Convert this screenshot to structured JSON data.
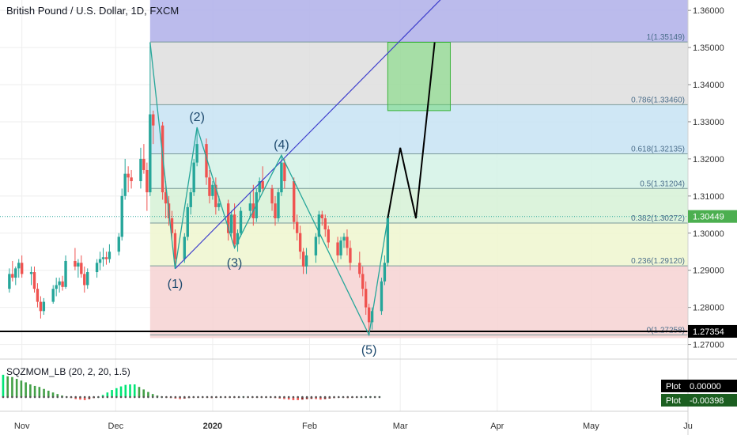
{
  "title": "British Pound / U.S. Dollar, 1D, FXCM",
  "indicator": {
    "name": "SQZMOM_LB (20, 2, 20, 1.5)"
  },
  "colors": {
    "up": "#26a69a",
    "down": "#ef5350",
    "wave_line": "#26a69a",
    "trend_line": "#3d3dcc",
    "projection": "#000000",
    "target_box": "#5bd65b",
    "support": "#000000",
    "price_tag": "#4caf50"
  },
  "chart_data": {
    "type": "candlestick",
    "y_ticks": [
      1.36,
      1.35,
      1.34,
      1.33,
      1.32,
      1.31,
      1.3,
      1.29,
      1.28,
      1.27
    ],
    "y_tick_labels": [
      "1.36000",
      "1.35000",
      "1.34000",
      "1.33000",
      "1.32000",
      "1.31000",
      "1.30000",
      "1.29000",
      "1.28000",
      "1.27000"
    ],
    "ylim": [
      1.2665,
      1.3628
    ],
    "x_labels": [
      {
        "label": "Nov",
        "day": 31
      },
      {
        "label": "Dec",
        "day": 61
      },
      {
        "label": "2020",
        "day": 92
      },
      {
        "label": "Feb",
        "day": 123
      },
      {
        "label": "Mar",
        "day": 152
      },
      {
        "label": "Apr",
        "day": 183
      },
      {
        "label": "May",
        "day": 213
      },
      {
        "label": "Ju",
        "day": 244
      }
    ],
    "xlim": [
      24,
      244
    ],
    "candles": [
      [
        27,
        1.285,
        1.2905,
        1.284,
        1.289
      ],
      [
        28,
        1.289,
        1.2925,
        1.287,
        1.288
      ],
      [
        29,
        1.288,
        1.291,
        1.286,
        1.2905
      ],
      [
        30,
        1.2905,
        1.293,
        1.288,
        1.292
      ],
      [
        31,
        1.292,
        1.294,
        1.288,
        1.289
      ],
      [
        34,
        1.289,
        1.291,
        1.286,
        1.2895
      ],
      [
        35,
        1.2895,
        1.291,
        1.284,
        1.285
      ],
      [
        36,
        1.285,
        1.2865,
        1.28,
        1.2815
      ],
      [
        37,
        1.2815,
        1.283,
        1.277,
        1.279
      ],
      [
        38,
        1.279,
        1.2825,
        1.278,
        1.2815
      ],
      [
        41,
        1.2815,
        1.286,
        1.281,
        1.285
      ],
      [
        42,
        1.285,
        1.288,
        1.283,
        1.286
      ],
      [
        43,
        1.286,
        1.288,
        1.284,
        1.287
      ],
      [
        44,
        1.287,
        1.2885,
        1.2845,
        1.2855
      ],
      [
        45,
        1.2855,
        1.294,
        1.285,
        1.2925
      ],
      [
        48,
        1.2925,
        1.296,
        1.29,
        1.291
      ],
      [
        49,
        1.291,
        1.293,
        1.288,
        1.292
      ],
      [
        50,
        1.292,
        1.294,
        1.288,
        1.289
      ],
      [
        51,
        1.289,
        1.291,
        1.284,
        1.286
      ],
      [
        52,
        1.286,
        1.2905,
        1.285,
        1.2895
      ],
      [
        55,
        1.2895,
        1.293,
        1.288,
        1.292
      ],
      [
        56,
        1.292,
        1.295,
        1.29,
        1.293
      ],
      [
        57,
        1.293,
        1.296,
        1.291,
        1.2935
      ],
      [
        58,
        1.2935,
        1.295,
        1.2915,
        1.293
      ],
      [
        59,
        1.293,
        1.297,
        1.292,
        1.295
      ],
      [
        62,
        1.295,
        1.3,
        1.294,
        1.299
      ],
      [
        63,
        1.299,
        1.312,
        1.298,
        1.31
      ],
      [
        64,
        1.31,
        1.32,
        1.309,
        1.316
      ],
      [
        65,
        1.316,
        1.318,
        1.311,
        1.315
      ],
      [
        66,
        1.315,
        1.317,
        1.312,
        1.314
      ],
      [
        69,
        1.314,
        1.323,
        1.312,
        1.32
      ],
      [
        70,
        1.32,
        1.324,
        1.316,
        1.317
      ],
      [
        71,
        1.317,
        1.319,
        1.306,
        1.311
      ],
      [
        72,
        1.311,
        1.3514,
        1.31,
        1.332
      ],
      [
        73,
        1.332,
        1.333,
        1.324,
        1.329
      ],
      [
        76,
        1.329,
        1.33,
        1.309,
        1.311
      ],
      [
        77,
        1.311,
        1.314,
        1.304,
        1.308
      ],
      [
        78,
        1.308,
        1.31,
        1.302,
        1.304
      ],
      [
        79,
        1.304,
        1.306,
        1.298,
        1.3
      ],
      [
        80,
        1.3,
        1.301,
        1.2904,
        1.293
      ],
      [
        83,
        1.293,
        1.3,
        1.292,
        1.299
      ],
      [
        84,
        1.299,
        1.308,
        1.298,
        1.307
      ],
      [
        85,
        1.307,
        1.312,
        1.305,
        1.311
      ],
      [
        86,
        1.311,
        1.32,
        1.31,
        1.319
      ],
      [
        87,
        1.319,
        1.3285,
        1.318,
        1.324
      ],
      [
        90,
        1.324,
        1.3255,
        1.313,
        1.315
      ],
      [
        91,
        1.315,
        1.317,
        1.308,
        1.31
      ],
      [
        92,
        1.31,
        1.314,
        1.309,
        1.313
      ],
      [
        93,
        1.313,
        1.315,
        1.305,
        1.307
      ],
      [
        94,
        1.307,
        1.31,
        1.306,
        1.308
      ],
      [
        97,
        1.308,
        1.309,
        1.298,
        1.3
      ],
      [
        98,
        1.3,
        1.306,
        1.299,
        1.305
      ],
      [
        99,
        1.305,
        1.308,
        1.296,
        1.297
      ],
      [
        100,
        1.297,
        1.301,
        1.295,
        1.3
      ],
      [
        101,
        1.3,
        1.307,
        1.299,
        1.306
      ],
      [
        104,
        1.306,
        1.311,
        1.304,
        1.308
      ],
      [
        105,
        1.308,
        1.313,
        1.302,
        1.304
      ],
      [
        106,
        1.304,
        1.312,
        1.303,
        1.311
      ],
      [
        107,
        1.311,
        1.315,
        1.309,
        1.314
      ],
      [
        108,
        1.314,
        1.318,
        1.311,
        1.312
      ],
      [
        111,
        1.312,
        1.313,
        1.306,
        1.308
      ],
      [
        112,
        1.308,
        1.31,
        1.302,
        1.304
      ],
      [
        113,
        1.304,
        1.312,
        1.303,
        1.311
      ],
      [
        114,
        1.311,
        1.321,
        1.31,
        1.319
      ],
      [
        115,
        1.319,
        1.32,
        1.312,
        1.314
      ],
      [
        118,
        1.314,
        1.315,
        1.301,
        1.303
      ],
      [
        119,
        1.303,
        1.305,
        1.298,
        1.3
      ],
      [
        120,
        1.3,
        1.302,
        1.293,
        1.295
      ],
      [
        121,
        1.295,
        1.296,
        1.289,
        1.291
      ],
      [
        122,
        1.291,
        1.296,
        1.289,
        1.294
      ],
      [
        125,
        1.294,
        1.3,
        1.292,
        1.299
      ],
      [
        126,
        1.299,
        1.306,
        1.297,
        1.305
      ],
      [
        127,
        1.305,
        1.306,
        1.302,
        1.304
      ],
      [
        128,
        1.304,
        1.305,
        1.299,
        1.301
      ],
      [
        129,
        1.301,
        1.302,
        1.296,
        1.2975
      ],
      [
        132,
        1.2975,
        1.299,
        1.292,
        1.294
      ],
      [
        133,
        1.294,
        1.299,
        1.293,
        1.298
      ],
      [
        134,
        1.298,
        1.3,
        1.296,
        1.299
      ],
      [
        135,
        1.299,
        1.301,
        1.294,
        1.296
      ],
      [
        136,
        1.296,
        1.298,
        1.29,
        1.292
      ],
      [
        139,
        1.292,
        1.295,
        1.288,
        1.289
      ],
      [
        140,
        1.289,
        1.291,
        1.283,
        1.285
      ],
      [
        141,
        1.285,
        1.287,
        1.278,
        1.28
      ],
      [
        142,
        1.28,
        1.281,
        1.2726,
        1.276
      ],
      [
        143,
        1.276,
        1.28,
        1.274,
        1.279
      ],
      [
        146,
        1.279,
        1.288,
        1.278,
        1.287
      ],
      [
        147,
        1.287,
        1.294,
        1.286,
        1.292
      ],
      [
        148,
        1.292,
        1.305,
        1.291,
        1.304
      ]
    ],
    "fib_levels": [
      {
        "ratio": "1",
        "price": 1.35149,
        "label": "1(1.35149)",
        "color": "#b4b4ea"
      },
      {
        "ratio": "0.786",
        "price": 1.3346,
        "label": "0.786(1.33460)",
        "color": "#dedede"
      },
      {
        "ratio": "0.618",
        "price": 1.32135,
        "label": "0.618(1.32135)",
        "color": "#c7e3f3"
      },
      {
        "ratio": "0.5",
        "price": 1.31204,
        "label": "0.5(1.31204)",
        "color": "#d4f2e6"
      },
      {
        "ratio": "0.382",
        "price": 1.30272,
        "label": "0.382(1.30272)",
        "color": "#d6f1d6"
      },
      {
        "ratio": "0.236",
        "price": 1.2912,
        "label": "0.236(1.29120)",
        "color": "#eef6cf"
      },
      {
        "ratio": "0",
        "price": 1.27258,
        "label": "0(1.27258)",
        "color": "#f6d2d2"
      }
    ],
    "fib_start_day": 72,
    "waves": [
      {
        "label": "(1)",
        "day": 80,
        "price": 1.2904,
        "pos": "below"
      },
      {
        "label": "(2)",
        "day": 87,
        "price": 1.3285,
        "pos": "above"
      },
      {
        "label": "(3)",
        "day": 99,
        "price": 1.296,
        "pos": "below"
      },
      {
        "label": "(4)",
        "day": 114,
        "price": 1.321,
        "pos": "above"
      },
      {
        "label": "(5)",
        "day": 142,
        "price": 1.2726,
        "pos": "below"
      }
    ],
    "wave_path": [
      [
        72,
        1.3514
      ],
      [
        80,
        1.2904
      ],
      [
        87,
        1.3285
      ],
      [
        99,
        1.296
      ],
      [
        114,
        1.321
      ],
      [
        142,
        1.2726
      ],
      [
        148,
        1.304
      ]
    ],
    "trendline": [
      [
        80,
        1.2904
      ],
      [
        165,
        1.363
      ]
    ],
    "projection": [
      [
        148,
        1.304
      ],
      [
        152,
        1.323
      ],
      [
        157,
        1.304
      ],
      [
        163,
        1.3514
      ]
    ],
    "target_box": {
      "x1": 148,
      "x2": 168,
      "y1": 1.333,
      "y2": 1.3514
    },
    "support": {
      "price": 1.27354,
      "label": "1.27354"
    },
    "last_price": {
      "price": 1.30449,
      "label": "1.30449"
    },
    "momentum": [
      0.0088,
      0.0082,
      0.0079,
      0.0072,
      0.0065,
      0.0058,
      0.005,
      0.0044,
      0.004,
      0.0032,
      0.0025,
      0.0018,
      0.0012,
      0.0006,
      0.0002,
      -0.0004,
      -0.0008,
      -0.001,
      -0.0012,
      -0.0008,
      -0.0004,
      0.0,
      0.0008,
      0.0018,
      0.0028,
      0.0035,
      0.0042,
      0.0048,
      0.005,
      0.005,
      0.004,
      0.003,
      0.002,
      0.0012,
      0.0006,
      0.0002,
      -0.0002,
      -0.0004,
      -0.0006,
      -0.0008,
      -0.0006,
      -0.0004,
      -0.0003,
      -0.0002,
      -0.0002,
      -0.0002,
      -0.0004,
      -0.0003,
      -0.0002,
      -0.0002,
      -0.0002,
      -0.0003,
      -0.0002,
      0.0002,
      -0.0001,
      -0.0002,
      -0.0002,
      -0.0003,
      -0.0002,
      -0.0003,
      -0.0004,
      -0.0006,
      -0.0008,
      -0.001,
      -0.0012,
      -0.0012,
      -0.001,
      -0.0008,
      -0.0007,
      -0.0008,
      -0.001,
      -0.0008,
      -0.0006,
      -0.0004,
      -0.0003,
      -0.0002,
      -0.0004,
      -0.0003,
      -0.0002,
      0.0,
      0.0002,
      0.0003,
      0.0002,
      0.0002
    ],
    "momentum_start_day": 25,
    "plot_labels": [
      {
        "name": "Plot",
        "value": "0.00000",
        "bg": "#000000"
      },
      {
        "name": "Plot",
        "value": "-0.00398",
        "bg": "#1b5e20"
      }
    ]
  }
}
